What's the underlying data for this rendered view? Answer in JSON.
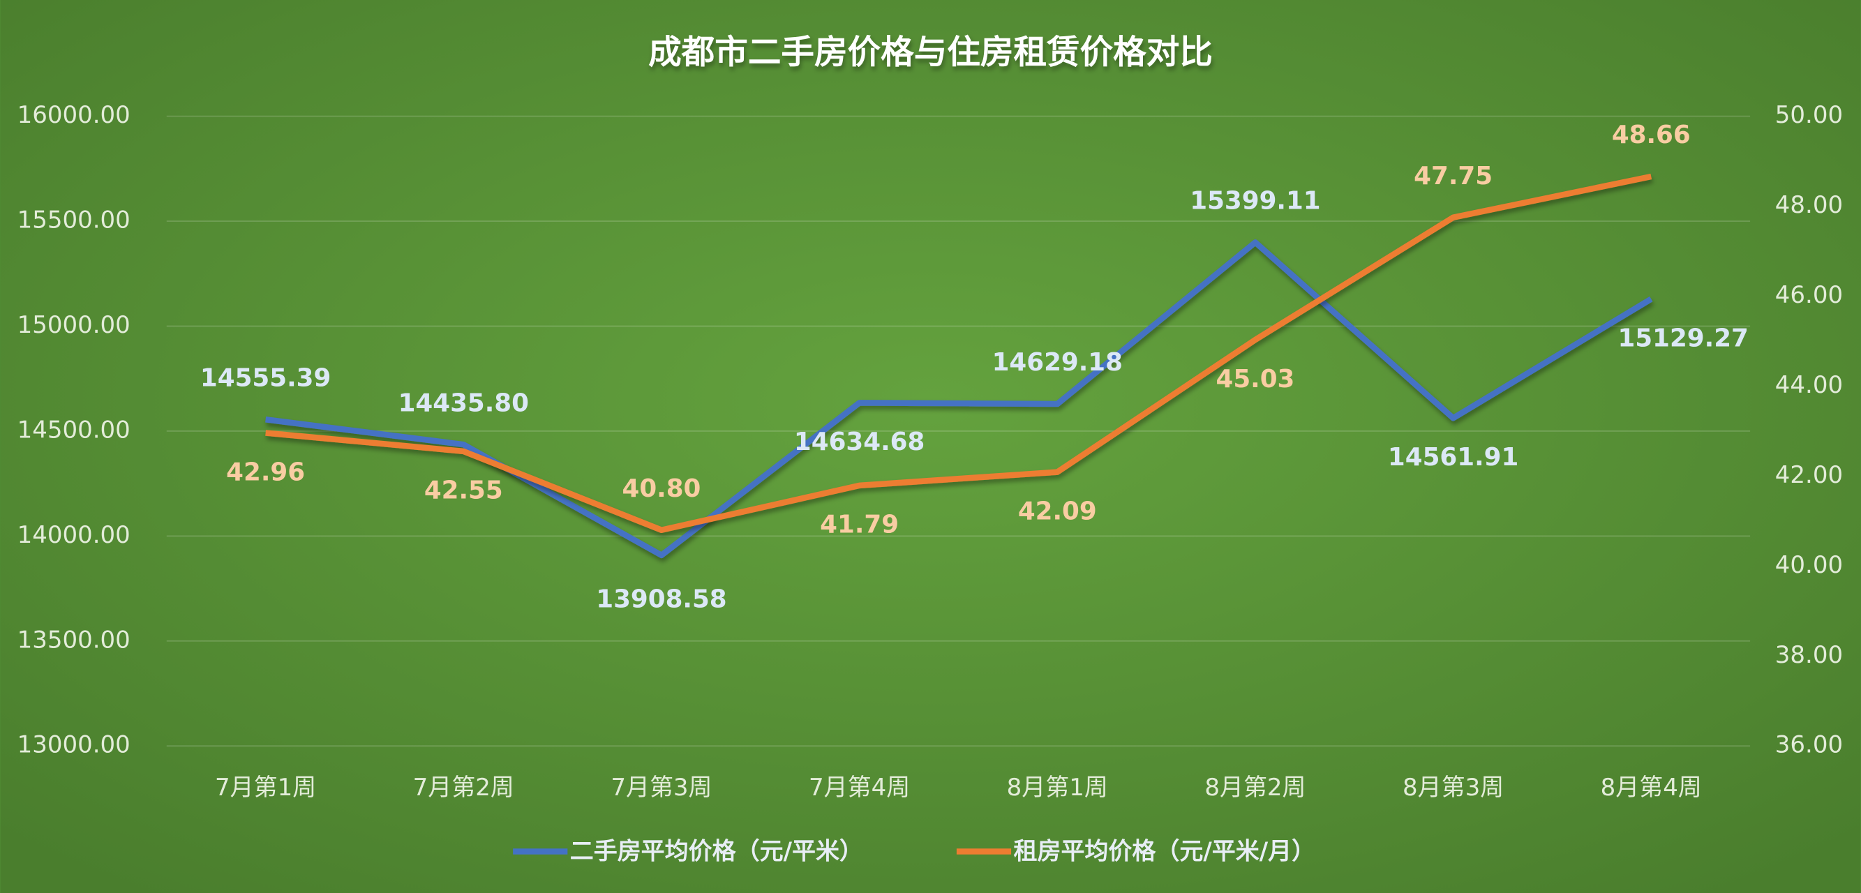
{
  "chart_data": {
    "type": "line",
    "title": "成都市二手房价格与住房租赁价格对比",
    "categories": [
      "7月第1周",
      "7月第2周",
      "7月第3周",
      "7月第4周",
      "8月第1周",
      "8月第2周",
      "8月第3周",
      "8月第4周"
    ],
    "series": [
      {
        "name": "二手房平均价格（元/平米）",
        "color": "#4472c4",
        "axis": "y",
        "values": [
          14555.39,
          14435.8,
          13908.58,
          14634.68,
          14629.18,
          15399.11,
          14561.91,
          15129.27
        ],
        "value_labels": [
          "14555.39",
          "14435.80",
          "13908.58",
          "14634.68",
          "14629.18",
          "15399.11",
          "14561.91",
          "15129.27"
        ]
      },
      {
        "name": "租房平均价格（元/平米/月）",
        "color": "#ed7d31",
        "axis": "y2",
        "values": [
          42.96,
          42.55,
          40.8,
          41.79,
          42.09,
          45.03,
          47.75,
          48.66
        ],
        "value_labels": [
          "42.96",
          "42.55",
          "40.80",
          "41.79",
          "42.09",
          "45.03",
          "47.75",
          "48.66"
        ]
      }
    ],
    "ylim": [
      13000,
      16000
    ],
    "yticks": [
      {
        "value": 13000,
        "label": "13000.00"
      },
      {
        "value": 13500,
        "label": "13500.00"
      },
      {
        "value": 14000,
        "label": "14000.00"
      },
      {
        "value": 14500,
        "label": "14500.00"
      },
      {
        "value": 15000,
        "label": "15000.00"
      },
      {
        "value": 15500,
        "label": "15500.00"
      },
      {
        "value": 16000,
        "label": "16000.00"
      }
    ],
    "y2lim": [
      36,
      50
    ],
    "y2ticks": [
      {
        "value": 36,
        "label": "36.00"
      },
      {
        "value": 38,
        "label": "38.00"
      },
      {
        "value": 40,
        "label": "40.00"
      },
      {
        "value": 42,
        "label": "42.00"
      },
      {
        "value": 44,
        "label": "44.00"
      },
      {
        "value": 46,
        "label": "46.00"
      },
      {
        "value": 48,
        "label": "48.00"
      },
      {
        "value": 50,
        "label": "50.00"
      }
    ],
    "grid": true,
    "legend": "bottom"
  }
}
